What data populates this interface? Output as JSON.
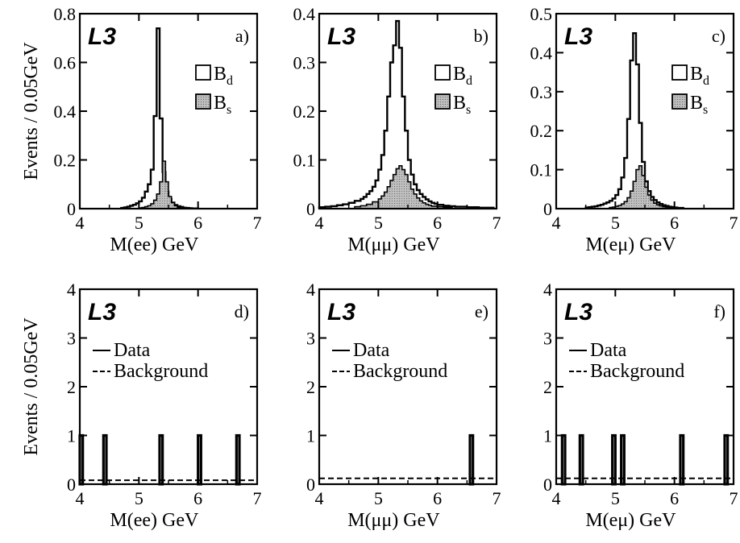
{
  "chart_data": [
    {
      "id": "a",
      "type": "histogram",
      "panel_label": "a)",
      "logo": "L3",
      "xlabel": "M(ee)  GeV",
      "ylabel": "Events / 0.05GeV",
      "xlim": [
        4,
        7
      ],
      "ylim": [
        0,
        0.8
      ],
      "xticks": [
        "4",
        "5",
        "6",
        "7"
      ],
      "yticks": [
        "0",
        "0.2",
        "0.4",
        "0.6",
        "0.8"
      ],
      "bin_width": 0.05,
      "legend": [
        {
          "name": "B",
          "sub": "d",
          "fill": "none"
        },
        {
          "name": "B",
          "sub": "s",
          "fill": "shaded"
        }
      ],
      "series": [
        {
          "name": "Bd",
          "style": "outline",
          "x": [
            4.7,
            4.75,
            4.8,
            4.85,
            4.9,
            4.95,
            5.0,
            5.05,
            5.1,
            5.15,
            5.2,
            5.25,
            5.3,
            5.35,
            5.4,
            5.45,
            5.5,
            5.55,
            5.6,
            5.65,
            5.7,
            5.75,
            5.8,
            5.85,
            5.9,
            5.95
          ],
          "values": [
            0.003,
            0.005,
            0.008,
            0.012,
            0.016,
            0.022,
            0.03,
            0.045,
            0.07,
            0.1,
            0.16,
            0.38,
            0.74,
            0.37,
            0.15,
            0.07,
            0.04,
            0.025,
            0.015,
            0.01,
            0.007,
            0.004,
            0.003,
            0.002,
            0.001,
            0.001
          ]
        },
        {
          "name": "Bs",
          "style": "shaded",
          "x": [
            5.0,
            5.05,
            5.1,
            5.15,
            5.2,
            5.25,
            5.3,
            5.35,
            5.4,
            5.45,
            5.5,
            5.55,
            5.6,
            5.65,
            5.7,
            5.75,
            5.8
          ],
          "values": [
            0.003,
            0.005,
            0.008,
            0.012,
            0.02,
            0.035,
            0.06,
            0.11,
            0.195,
            0.11,
            0.05,
            0.025,
            0.012,
            0.006,
            0.004,
            0.002,
            0.001
          ]
        }
      ]
    },
    {
      "id": "b",
      "type": "histogram",
      "panel_label": "b)",
      "logo": "L3",
      "xlabel": "M(μμ)  GeV",
      "xlim": [
        4,
        7
      ],
      "ylim": [
        0,
        0.4
      ],
      "xticks": [
        "4",
        "5",
        "6",
        "7"
      ],
      "yticks": [
        "0",
        "0.1",
        "0.2",
        "0.3",
        "0.4"
      ],
      "bin_width": 0.05,
      "legend": [
        {
          "name": "B",
          "sub": "d",
          "fill": "none"
        },
        {
          "name": "B",
          "sub": "s",
          "fill": "shaded"
        }
      ],
      "series": [
        {
          "name": "Bd",
          "style": "outline",
          "x": [
            4.0,
            4.1,
            4.2,
            4.3,
            4.4,
            4.5,
            4.6,
            4.7,
            4.75,
            4.8,
            4.85,
            4.9,
            4.95,
            5.0,
            5.05,
            5.1,
            5.15,
            5.2,
            5.25,
            5.3,
            5.35,
            5.4,
            5.45,
            5.5,
            5.55,
            5.6,
            5.65,
            5.7,
            5.75,
            5.8,
            5.85,
            5.9,
            5.95,
            6.0,
            6.1,
            6.2,
            6.3,
            6.4,
            6.5,
            6.6,
            6.7,
            6.8,
            6.9
          ],
          "values": [
            0.003,
            0.004,
            0.005,
            0.007,
            0.009,
            0.012,
            0.016,
            0.02,
            0.024,
            0.03,
            0.036,
            0.045,
            0.058,
            0.08,
            0.11,
            0.16,
            0.23,
            0.3,
            0.335,
            0.385,
            0.33,
            0.23,
            0.16,
            0.1,
            0.07,
            0.05,
            0.038,
            0.03,
            0.024,
            0.019,
            0.015,
            0.012,
            0.01,
            0.008,
            0.006,
            0.005,
            0.004,
            0.004,
            0.003,
            0.003,
            0.002,
            0.002,
            0.002
          ]
        },
        {
          "name": "Bs",
          "style": "shaded",
          "x": [
            4.6,
            4.7,
            4.8,
            4.9,
            5.0,
            5.05,
            5.1,
            5.15,
            5.2,
            5.25,
            5.3,
            5.35,
            5.4,
            5.45,
            5.5,
            5.55,
            5.6,
            5.65,
            5.7,
            5.75,
            5.8,
            5.85,
            5.9,
            6.0,
            6.1,
            6.2
          ],
          "values": [
            0.004,
            0.006,
            0.009,
            0.014,
            0.02,
            0.026,
            0.034,
            0.045,
            0.058,
            0.07,
            0.082,
            0.088,
            0.08,
            0.07,
            0.055,
            0.04,
            0.03,
            0.022,
            0.016,
            0.012,
            0.009,
            0.007,
            0.005,
            0.004,
            0.003,
            0.002
          ]
        }
      ]
    },
    {
      "id": "c",
      "type": "histogram",
      "panel_label": "c)",
      "logo": "L3",
      "xlabel": "M(eμ)  GeV",
      "xlim": [
        4,
        7
      ],
      "ylim": [
        0,
        0.5
      ],
      "xticks": [
        "4",
        "5",
        "6",
        "7"
      ],
      "yticks": [
        "0",
        "0.1",
        "0.2",
        "0.3",
        "0.4",
        "0.5"
      ],
      "bin_width": 0.05,
      "legend": [
        {
          "name": "B",
          "sub": "d",
          "fill": "none"
        },
        {
          "name": "B",
          "sub": "s",
          "fill": "shaded"
        }
      ],
      "series": [
        {
          "name": "Bd",
          "style": "outline",
          "x": [
            4.5,
            4.55,
            4.6,
            4.65,
            4.7,
            4.75,
            4.8,
            4.85,
            4.9,
            4.95,
            5.0,
            5.05,
            5.1,
            5.15,
            5.2,
            5.25,
            5.3,
            5.35,
            5.4,
            5.45,
            5.5,
            5.55,
            5.6,
            5.65,
            5.7,
            5.75,
            5.8,
            5.85,
            5.9,
            5.95,
            6.0,
            6.05,
            6.1
          ],
          "values": [
            0.003,
            0.004,
            0.005,
            0.006,
            0.008,
            0.01,
            0.013,
            0.016,
            0.02,
            0.026,
            0.035,
            0.05,
            0.08,
            0.13,
            0.23,
            0.38,
            0.45,
            0.37,
            0.22,
            0.12,
            0.07,
            0.045,
            0.03,
            0.022,
            0.016,
            0.012,
            0.009,
            0.007,
            0.005,
            0.004,
            0.003,
            0.002,
            0.002
          ]
        },
        {
          "name": "Bs",
          "style": "shaded",
          "x": [
            4.9,
            4.95,
            5.0,
            5.05,
            5.1,
            5.15,
            5.2,
            5.25,
            5.3,
            5.35,
            5.4,
            5.45,
            5.5,
            5.55,
            5.6,
            5.65,
            5.7,
            5.75,
            5.8,
            5.85,
            5.9,
            5.95,
            6.0
          ],
          "values": [
            0.003,
            0.004,
            0.006,
            0.008,
            0.012,
            0.018,
            0.028,
            0.045,
            0.07,
            0.1,
            0.11,
            0.085,
            0.055,
            0.035,
            0.022,
            0.014,
            0.01,
            0.007,
            0.005,
            0.004,
            0.003,
            0.002,
            0.002
          ]
        }
      ]
    },
    {
      "id": "d",
      "type": "histogram",
      "panel_label": "d)",
      "logo": "L3",
      "xlabel": "M(ee)  GeV",
      "ylabel": "Events / 0.05GeV",
      "xlim": [
        4,
        7
      ],
      "ylim": [
        0,
        4
      ],
      "xticks": [
        "4",
        "5",
        "6",
        "7"
      ],
      "yticks": [
        "0",
        "1",
        "2",
        "3",
        "4"
      ],
      "bin_width": 0.05,
      "legend": [
        {
          "name": "Data",
          "style": "solid"
        },
        {
          "name": "Background",
          "style": "dashed"
        }
      ],
      "data_events": [
        4.0,
        4.4,
        5.35,
        6.0,
        6.65
      ],
      "background_level": 0.08
    },
    {
      "id": "e",
      "type": "histogram",
      "panel_label": "e)",
      "logo": "L3",
      "xlabel": "M(μμ)  GeV",
      "xlim": [
        4,
        7
      ],
      "ylim": [
        0,
        4
      ],
      "xticks": [
        "4",
        "5",
        "6",
        "7"
      ],
      "yticks": [
        "0",
        "1",
        "2",
        "3",
        "4"
      ],
      "bin_width": 0.05,
      "legend": [
        {
          "name": "Data",
          "style": "solid"
        },
        {
          "name": "Background",
          "style": "dashed"
        }
      ],
      "data_events": [
        6.55
      ],
      "background_level": 0.12
    },
    {
      "id": "f",
      "type": "histogram",
      "panel_label": "f)",
      "logo": "L3",
      "xlabel": "M(eμ)  GeV",
      "xlim": [
        4,
        7
      ],
      "ylim": [
        0,
        4
      ],
      "xticks": [
        "4",
        "5",
        "6",
        "7"
      ],
      "yticks": [
        "0",
        "1",
        "2",
        "3",
        "4"
      ],
      "bin_width": 0.05,
      "legend": [
        {
          "name": "Data",
          "style": "solid"
        },
        {
          "name": "Background",
          "style": "dashed"
        }
      ],
      "data_events": [
        4.1,
        4.4,
        4.95,
        5.1,
        6.1,
        6.85
      ],
      "background_level": 0.12
    }
  ]
}
